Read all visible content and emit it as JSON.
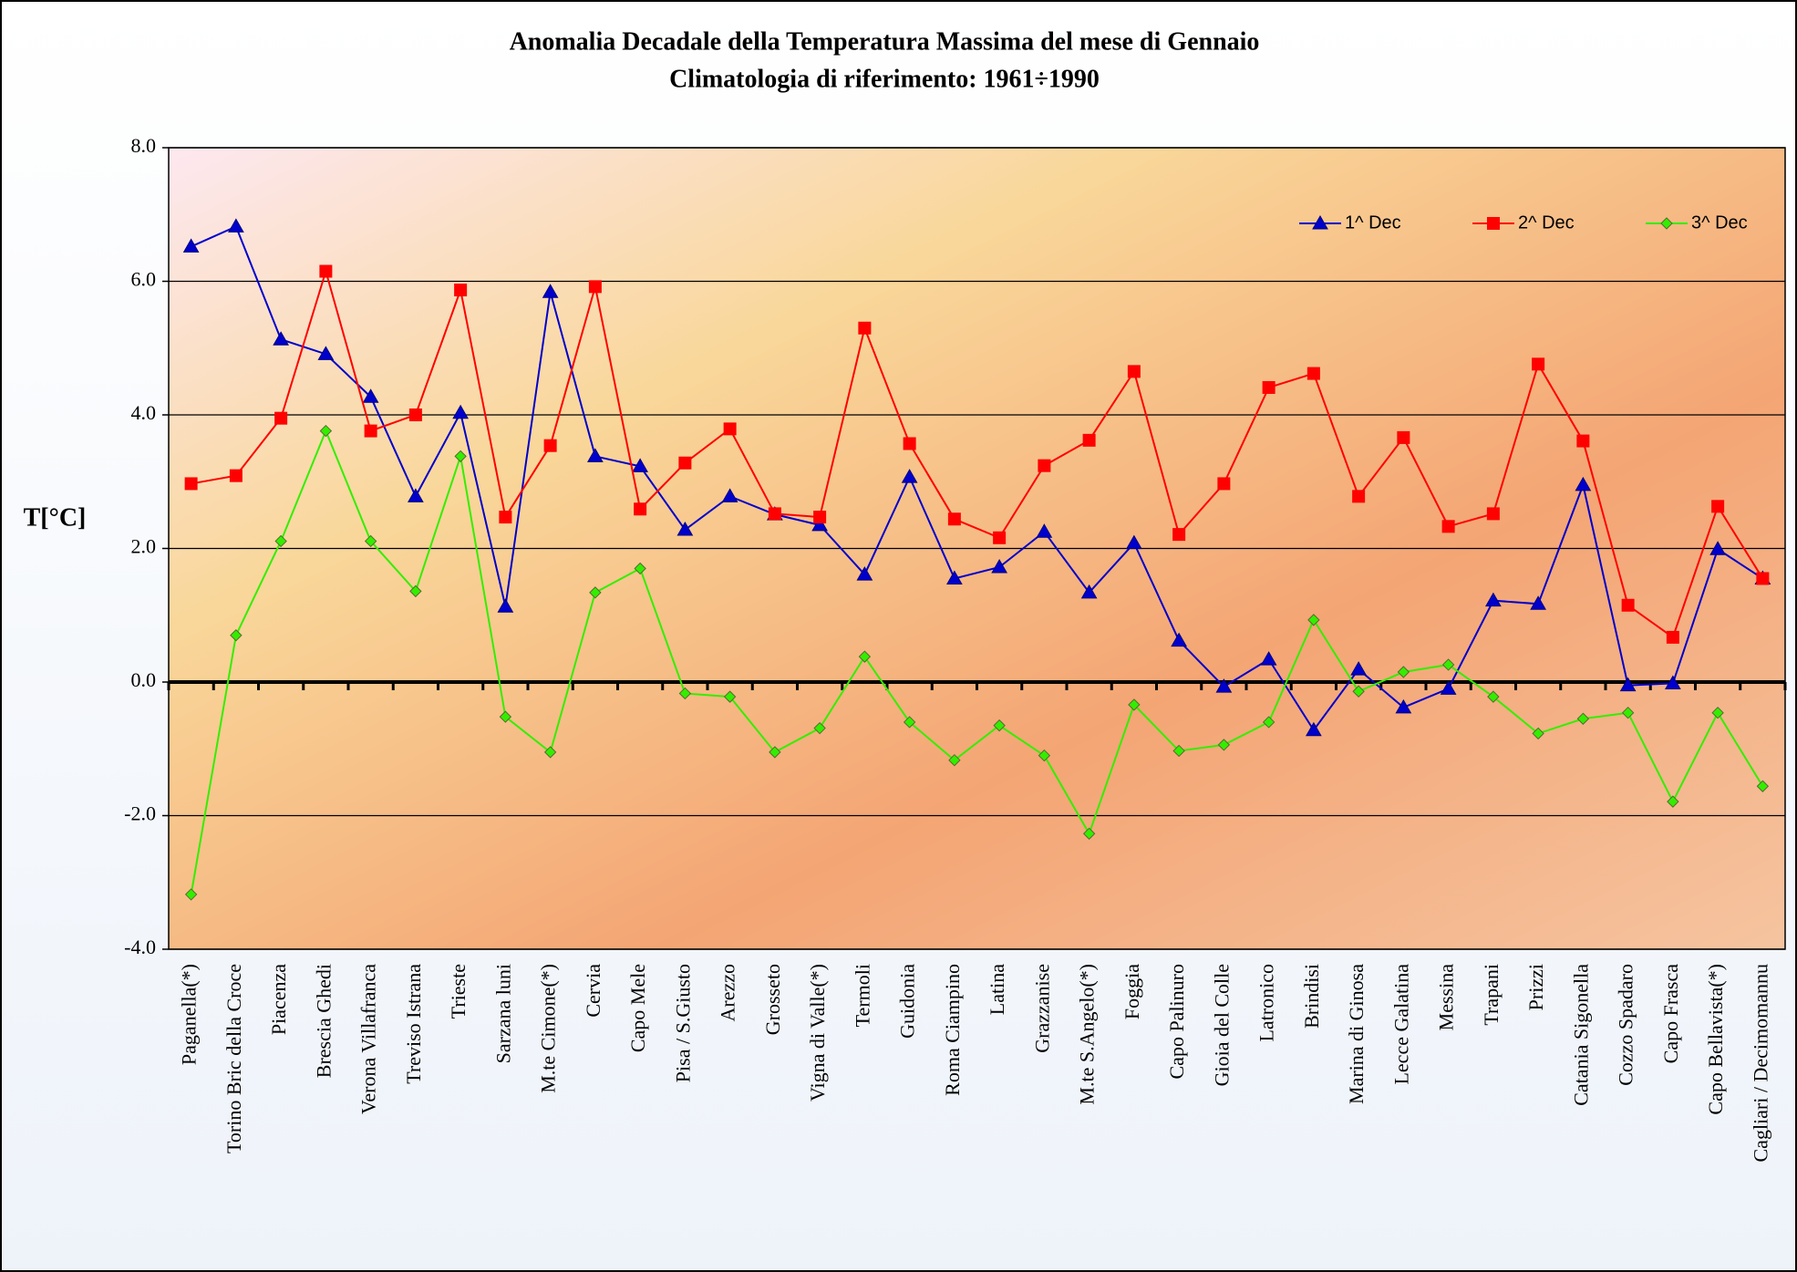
{
  "chart_data": {
    "type": "line",
    "title": "Anomalia Decadale della Temperatura Massima del mese di Gennaio",
    "subtitle": "Climatologia di riferimento: 1961÷1990",
    "y_label": "T[°C]",
    "categories": [
      "Paganella(*)",
      "Torino Bric della Croce",
      "Piacenza",
      "Brescia Ghedi",
      "Verona Villafranca",
      "Treviso Istrana",
      "Trieste",
      "Sarzana luni",
      "M.te Cimone(*)",
      "Cervia",
      "Capo Mele",
      "Pisa / S.Giusto",
      "Arezzo",
      "Grosseto",
      "Vigna di Valle(*)",
      "Termoli",
      "Guidonia",
      "Roma Ciampino",
      "Latina",
      "Grazzanise",
      "M.te S.Angelo(*)",
      "Foggia",
      "Capo Palinuro",
      "Gioia del Colle",
      "Latronico",
      "Brindisi",
      "Marina di Ginosa",
      "Lecce Galatina",
      "Messina",
      "Trapani",
      "Prizzi",
      "Catania Sigonella",
      "Cozzo Spadaro",
      "Capo Frasca",
      "Capo Bellavista(*)",
      "Cagliari / Decimomannu"
    ],
    "series": [
      {
        "name": "1^ Dec",
        "color": "#0000cc",
        "marker": "triangle",
        "values": [
          6.52,
          6.82,
          5.13,
          4.91,
          4.27,
          2.78,
          4.03,
          1.13,
          5.84,
          3.38,
          3.23,
          2.28,
          2.78,
          2.51,
          2.35,
          1.61,
          3.07,
          1.55,
          1.72,
          2.25,
          1.34,
          2.08,
          0.62,
          -0.07,
          0.34,
          -0.72,
          0.19,
          -0.38,
          -0.1,
          1.22,
          1.17,
          2.95,
          -0.05,
          -0.02,
          1.99,
          1.55
        ]
      },
      {
        "name": "2^ Dec",
        "color": "#ff0000",
        "marker": "square",
        "values": [
          2.97,
          3.09,
          3.95,
          6.15,
          3.76,
          4.0,
          5.87,
          2.47,
          3.54,
          5.92,
          2.59,
          3.28,
          3.79,
          2.52,
          2.47,
          5.3,
          3.57,
          2.44,
          2.16,
          3.24,
          3.62,
          4.65,
          2.21,
          2.97,
          4.41,
          4.62,
          2.78,
          3.66,
          2.33,
          2.52,
          4.76,
          3.61,
          1.15,
          0.67,
          2.63,
          1.55
        ]
      },
      {
        "name": "3^ Dec",
        "color": "#33ee00",
        "marker": "diamond",
        "values": [
          -3.18,
          0.7,
          2.11,
          3.76,
          2.11,
          1.36,
          3.38,
          -0.52,
          -1.05,
          1.34,
          1.7,
          -0.17,
          -0.22,
          -1.05,
          -0.69,
          0.38,
          -0.6,
          -1.17,
          -0.65,
          -1.1,
          -2.27,
          -0.34,
          -1.03,
          -0.94,
          -0.6,
          0.93,
          -0.14,
          0.15,
          0.26,
          -0.22,
          -0.77,
          -0.55,
          -0.46,
          -1.79,
          -0.46,
          -1.56
        ]
      }
    ],
    "ylim": [
      -4,
      8
    ],
    "yticks": [
      {
        "value": -4,
        "label": "-4.0"
      },
      {
        "value": -2,
        "label": "-2.0"
      },
      {
        "value": 0,
        "label": "0.0"
      },
      {
        "value": 2,
        "label": "2.0"
      },
      {
        "value": 4,
        "label": "4.0"
      },
      {
        "value": 6,
        "label": "6.0"
      },
      {
        "value": 8,
        "label": "8.0"
      }
    ],
    "grid": true,
    "legend": "top-right"
  }
}
